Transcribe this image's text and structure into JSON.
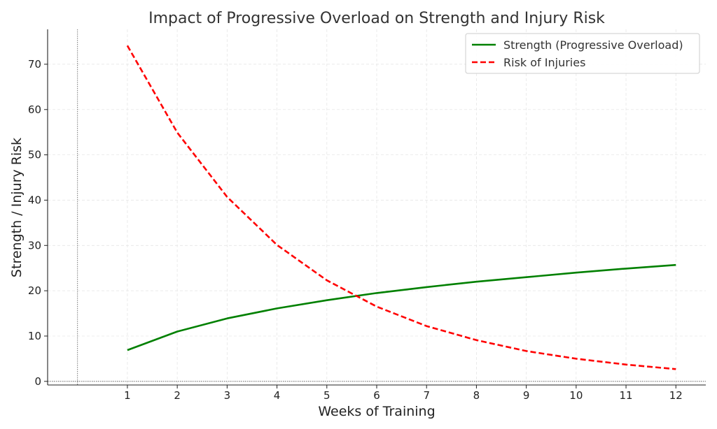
{
  "chart_data": {
    "type": "line",
    "title": "Impact of Progressive Overload on Strength and Injury Risk",
    "xlabel": "Weeks of Training",
    "ylabel": "Strength / Injury Risk",
    "x": [
      1,
      2,
      3,
      4,
      5,
      6,
      7,
      8,
      9,
      10,
      11,
      12
    ],
    "xticks": [
      "1",
      "2",
      "3",
      "4",
      "5",
      "6",
      "7",
      "8",
      "9",
      "10",
      "11",
      "12"
    ],
    "yticks": [
      "0",
      "10",
      "20",
      "30",
      "40",
      "50",
      "60",
      "70"
    ],
    "xlim": [
      -0.6,
      12.6
    ],
    "ylim": [
      -0.8,
      77.7
    ],
    "grid": true,
    "legend_position": "top-right",
    "series": [
      {
        "name": "Strength (Progressive Overload)",
        "values": [
          6.9,
          11.0,
          13.9,
          16.1,
          17.9,
          19.5,
          20.8,
          22.0,
          23.0,
          24.0,
          24.9,
          25.7
        ],
        "color": "#008000",
        "style": "solid"
      },
      {
        "name": "Risk of Injuries",
        "values": [
          74.1,
          54.9,
          40.7,
          30.1,
          22.3,
          16.5,
          12.2,
          9.1,
          6.7,
          5.0,
          3.7,
          2.7
        ],
        "color": "#ff0000",
        "style": "dashed"
      }
    ]
  }
}
